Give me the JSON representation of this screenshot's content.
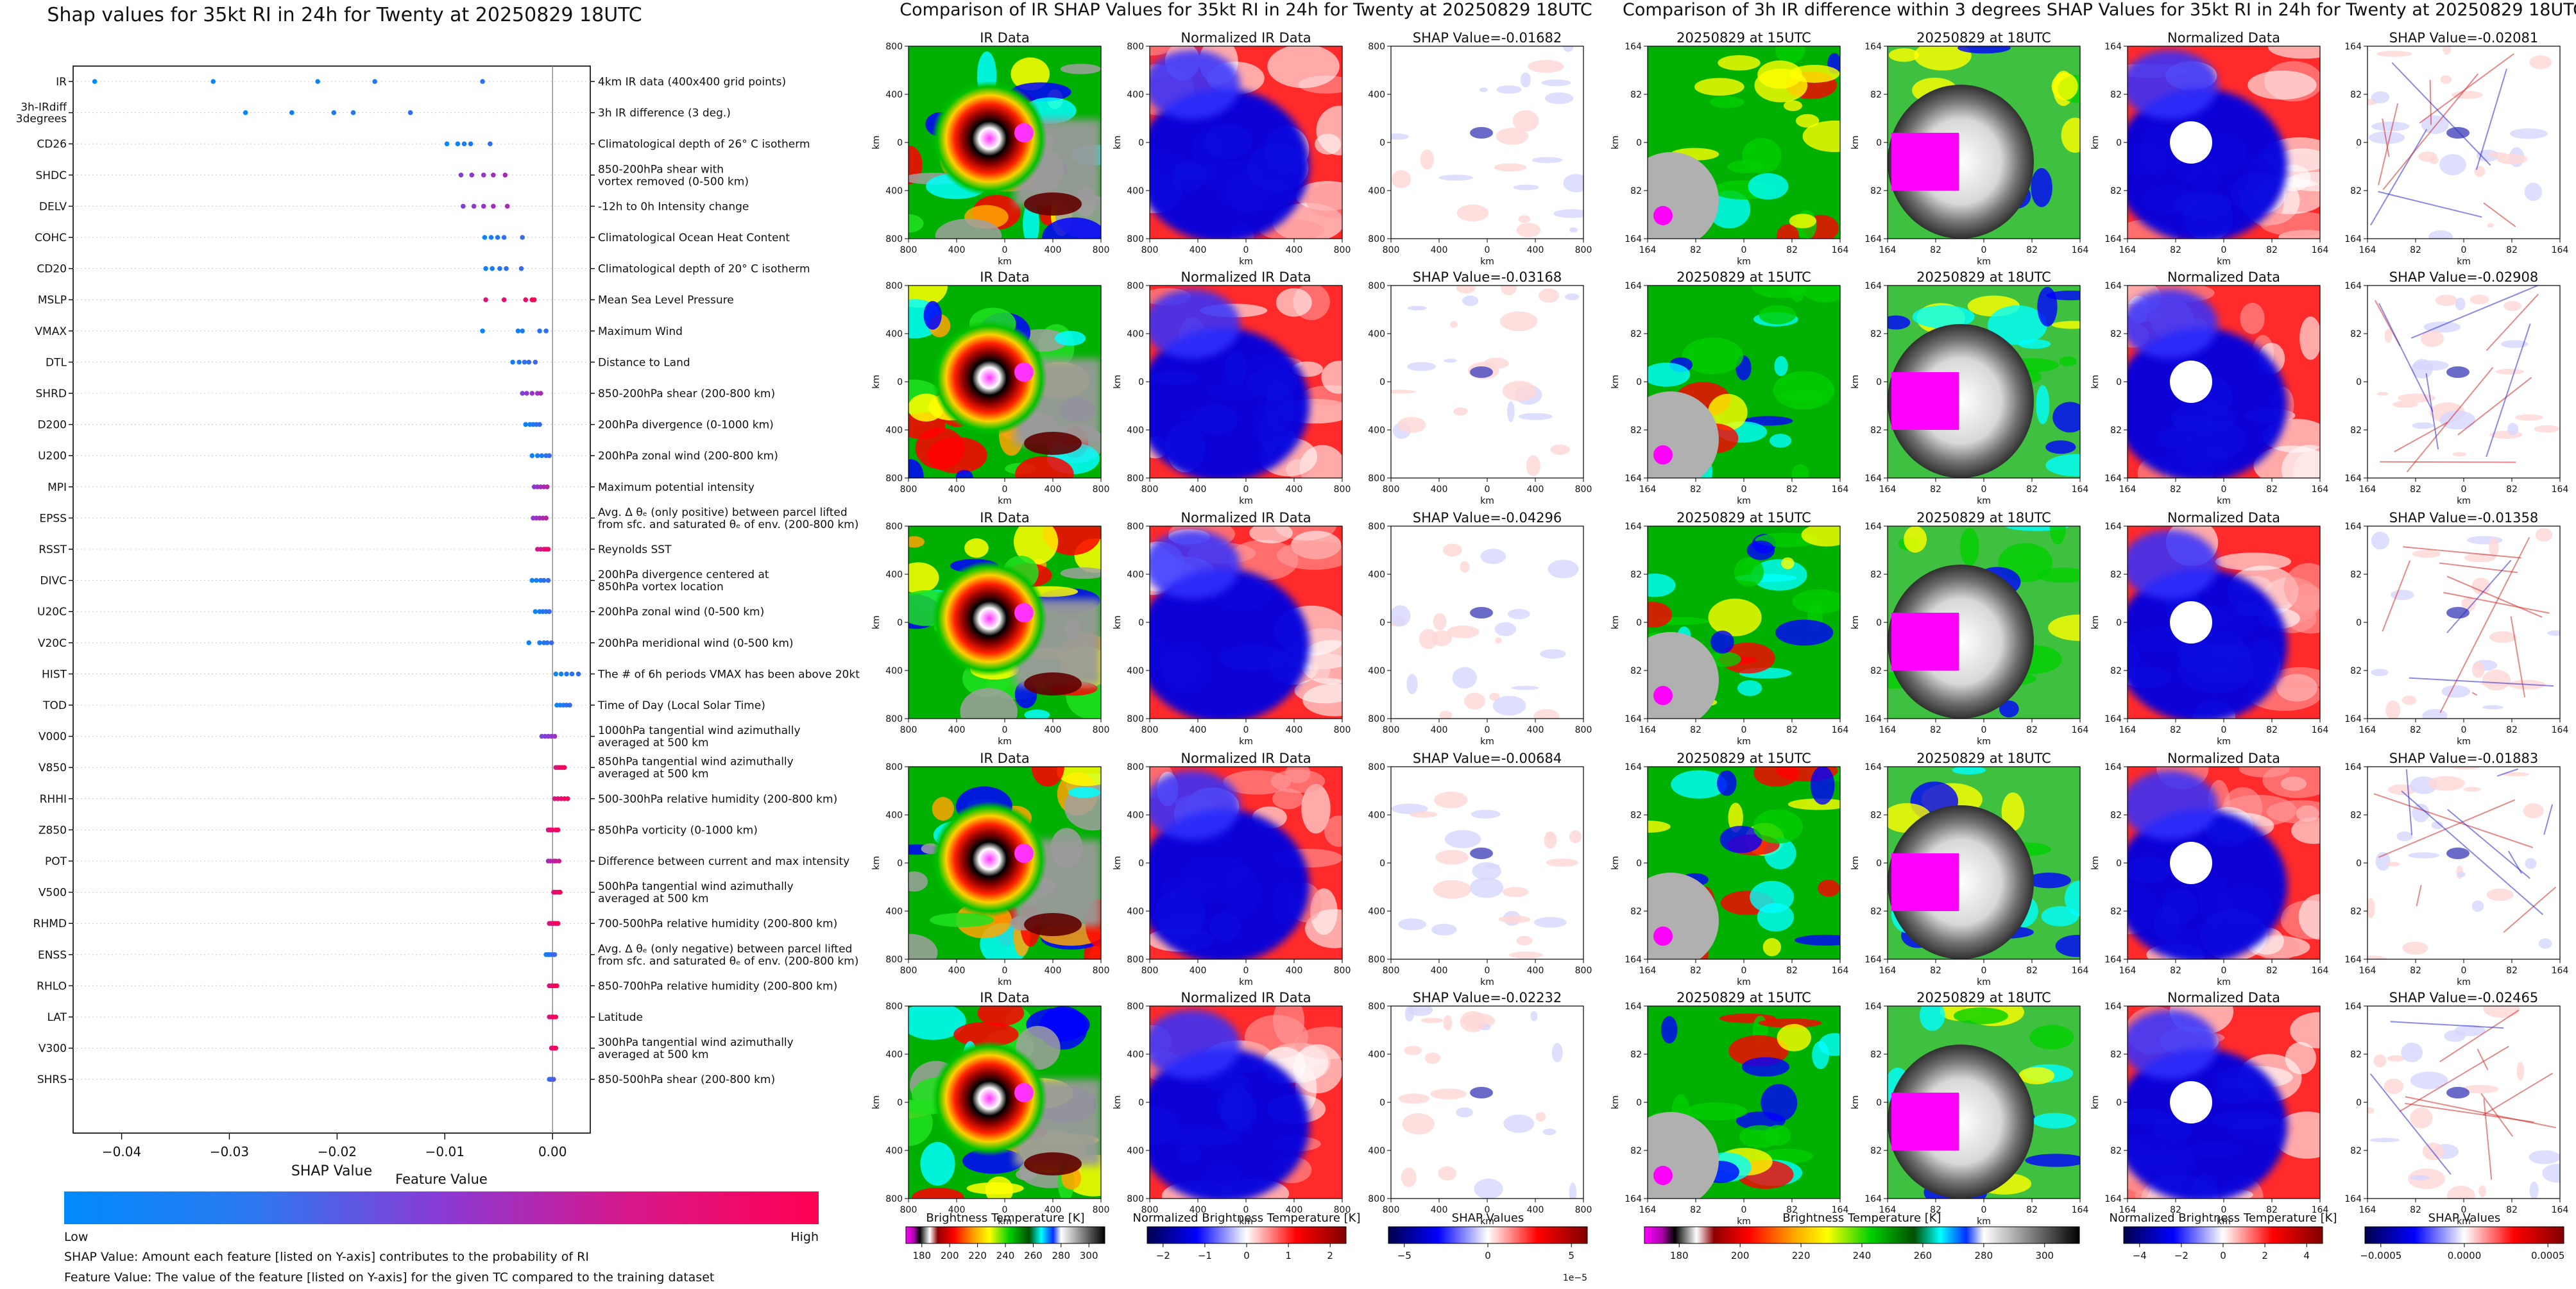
{
  "colors": {
    "feature_low": "#1e88e5",
    "feature_mid": "#8e24aa",
    "feature_high": "#ff0052",
    "seismic_neg": "#0000b4",
    "seismic_pos": "#c00000",
    "axis": "#000000"
  },
  "chart_data": [
    {
      "type": "scatter",
      "name": "shap-beeswarm",
      "title": "Shap values for 35kt RI in 24h for Twenty at 20250829 18UTC",
      "xlabel": "SHAP Value",
      "xlim": [
        -0.0445,
        0.0035
      ],
      "xticks": [
        -0.04,
        -0.03,
        -0.02,
        -0.01,
        0.0
      ],
      "xtick_labels": [
        "−0.04",
        "−0.03",
        "−0.02",
        "−0.01",
        "0.00"
      ],
      "colorbar": {
        "title": "Feature Value",
        "low_label": "Low",
        "high_label": "High"
      },
      "notes": [
        "SHAP Value: Amount each feature [listed on Y-axis] contributes to the probability of RI",
        "Feature Value: The value of the feature [listed on Y-axis] for the given TC compared to the training dataset"
      ],
      "features": [
        {
          "name": "IR",
          "desc": "4km IR data (400x400 grid points)",
          "color": 0.05,
          "values": [
            -0.0425,
            -0.0315,
            -0.0218,
            -0.0165,
            -0.0065
          ]
        },
        {
          "name": "3h-IRdiff\n3degrees",
          "desc": "3h IR difference (3 deg.)",
          "color": 0.1,
          "values": [
            -0.0285,
            -0.0242,
            -0.0203,
            -0.0185,
            -0.0132
          ]
        },
        {
          "name": "CD26",
          "desc": "Climatological depth of 26° C isotherm",
          "color": 0.08,
          "values": [
            -0.0098,
            -0.0088,
            -0.0082,
            -0.0076,
            -0.0058
          ]
        },
        {
          "name": "SHDC",
          "desc": "850-200hPa shear with\nvortex removed (0-500 km)",
          "color": 0.55,
          "values": [
            -0.0085,
            -0.0075,
            -0.0064,
            -0.0055,
            -0.0044
          ]
        },
        {
          "name": "DELV",
          "desc": "-12h to 0h Intensity change",
          "color": 0.55,
          "values": [
            -0.0083,
            -0.0073,
            -0.0064,
            -0.0055,
            -0.0042
          ]
        },
        {
          "name": "COHC",
          "desc": "Climatological Ocean Heat Content",
          "color": 0.12,
          "values": [
            -0.0063,
            -0.0057,
            -0.0051,
            -0.0045,
            -0.0028
          ]
        },
        {
          "name": "CD20",
          "desc": "Climatological depth of 20° C isotherm",
          "color": 0.12,
          "values": [
            -0.0062,
            -0.0056,
            -0.0049,
            -0.0043,
            -0.0029
          ]
        },
        {
          "name": "MSLP",
          "desc": "Mean Sea Level Pressure",
          "color": 0.92,
          "values": [
            -0.0062,
            -0.0045,
            -0.0025,
            -0.0019,
            -0.0017
          ]
        },
        {
          "name": "VMAX",
          "desc": "Maximum Wind",
          "color": 0.1,
          "values": [
            -0.0065,
            -0.0032,
            -0.0028,
            -0.0012,
            -0.0006
          ]
        },
        {
          "name": "DTL",
          "desc": "Distance to Land",
          "color": 0.15,
          "values": [
            -0.0037,
            -0.0031,
            -0.0026,
            -0.0022,
            -0.0016
          ]
        },
        {
          "name": "SHRD",
          "desc": "850-200hPa shear (200-800 km)",
          "color": 0.55,
          "values": [
            -0.0028,
            -0.0024,
            -0.0019,
            -0.0014,
            -0.0011
          ]
        },
        {
          "name": "D200",
          "desc": "200hPa divergence (0-1000 km)",
          "color": 0.12,
          "values": [
            -0.0025,
            -0.0021,
            -0.0018,
            -0.0015,
            -0.0012
          ]
        },
        {
          "name": "U200",
          "desc": "200hPa zonal wind (200-800 km)",
          "color": 0.12,
          "values": [
            -0.0019,
            -0.0014,
            -0.001,
            -0.0006,
            -0.0003
          ]
        },
        {
          "name": "MPI",
          "desc": "Maximum potential intensity",
          "color": 0.6,
          "values": [
            -0.0017,
            -0.0014,
            -0.0011,
            -0.0008,
            -0.0005
          ]
        },
        {
          "name": "EPSS",
          "desc": "Avg. Δ θₑ (only positive) between parcel lifted\nfrom sfc. and saturated θₑ of env. (200-800 km)",
          "color": 0.6,
          "values": [
            -0.0018,
            -0.0015,
            -0.0012,
            -0.0009,
            -0.0006
          ]
        },
        {
          "name": "RSST",
          "desc": "Reynolds SST",
          "color": 0.85,
          "values": [
            -0.0014,
            -0.0011,
            -0.0008,
            -0.0006,
            -0.0004
          ]
        },
        {
          "name": "DIVC",
          "desc": "200hPa divergence centered at\n850hPa vortex location",
          "color": 0.12,
          "values": [
            -0.0019,
            -0.0015,
            -0.0011,
            -0.0008,
            -0.0004
          ]
        },
        {
          "name": "U20C",
          "desc": "200hPa zonal wind (0-500 km)",
          "color": 0.12,
          "values": [
            -0.0016,
            -0.0012,
            -0.0009,
            -0.0006,
            -0.0003
          ]
        },
        {
          "name": "V20C",
          "desc": "200hPa meridional wind (0-500 km)",
          "color": 0.12,
          "values": [
            -0.0022,
            -0.0012,
            -0.0008,
            -0.0005,
            -0.0001
          ]
        },
        {
          "name": "HIST",
          "desc": "The # of 6h periods VMAX has been above 20kt",
          "color": 0.1,
          "values": [
            0.0003,
            0.0008,
            0.0013,
            0.0018,
            0.0024
          ]
        },
        {
          "name": "TOD",
          "desc": "Time of Day (Local Solar Time)",
          "color": 0.12,
          "values": [
            0.0004,
            0.0007,
            0.001,
            0.0013,
            0.0016
          ]
        },
        {
          "name": "V000",
          "desc": "1000hPa tangential wind azimuthally\naveraged at 500 km",
          "color": 0.5,
          "values": [
            -0.001,
            -0.0007,
            -0.0004,
            -0.0001,
            0.0002
          ]
        },
        {
          "name": "V850",
          "desc": "850hPa tangential wind azimuthally\naveraged at 500 km",
          "color": 0.9,
          "values": [
            0.0003,
            0.0005,
            0.0007,
            0.0009,
            0.0011
          ]
        },
        {
          "name": "RHHI",
          "desc": "500-300hPa relative humidity (200-800 km)",
          "color": 0.9,
          "values": [
            0.0002,
            0.0005,
            0.0008,
            0.0011,
            0.0014
          ]
        },
        {
          "name": "Z850",
          "desc": "850hPa vorticity (0-1000 km)",
          "color": 0.9,
          "values": [
            -0.0004,
            -0.0002,
            0.0,
            0.0003,
            0.0005
          ]
        },
        {
          "name": "POT",
          "desc": "Difference between current and max intensity",
          "color": 0.7,
          "values": [
            -0.0004,
            -0.0002,
            0.0001,
            0.0003,
            0.0006
          ]
        },
        {
          "name": "V500",
          "desc": "500hPa tangential wind azimuthally\naveraged at 500 km",
          "color": 0.9,
          "values": [
            0.0001,
            0.0002,
            0.0004,
            0.0006,
            0.0007
          ]
        },
        {
          "name": "RHMD",
          "desc": "700-500hPa relative humidity (200-800 km)",
          "color": 0.9,
          "values": [
            -0.0003,
            -0.0001,
            0.0001,
            0.0003,
            0.0005
          ]
        },
        {
          "name": "ENSS",
          "desc": "Avg. Δ θₑ (only negative) between parcel lifted\nfrom sfc. and saturated θₑ of env. (200-800 km)",
          "color": 0.15,
          "values": [
            -0.0006,
            -0.0004,
            -0.0002,
            0.0,
            0.0002
          ]
        },
        {
          "name": "RHLO",
          "desc": "850-700hPa relative humidity (200-800 km)",
          "color": 0.9,
          "values": [
            -0.0003,
            -0.0001,
            0.0,
            0.0002,
            0.0004
          ]
        },
        {
          "name": "LAT",
          "desc": "Latitude",
          "color": 0.9,
          "values": [
            -0.0003,
            -0.0001,
            0.0,
            0.0001,
            0.0003
          ]
        },
        {
          "name": "V300",
          "desc": "300hPa tangential wind azimuthally\naveraged at 500 km",
          "color": 0.9,
          "values": [
            -0.0001,
            0.0,
            0.0001,
            0.0002,
            0.0003
          ]
        },
        {
          "name": "SHRS",
          "desc": "850-500hPa shear (200-800 km)",
          "color": 0.2,
          "values": [
            -0.0003,
            -0.0002,
            -0.0001,
            0.0,
            0.0001
          ]
        }
      ]
    },
    {
      "type": "heatmap",
      "name": "ir-comparison",
      "title": "Comparison of IR SHAP Values for 35kt RI in 24h for Twenty at 20250829 18UTC",
      "columns": [
        {
          "title": "IR Data",
          "kind": "ir"
        },
        {
          "title": "Normalized IR Data",
          "kind": "norm"
        },
        {
          "title": "SHAP Value",
          "kind": "shap"
        }
      ],
      "shap_values": [
        "-0.01682",
        "-0.03168",
        "-0.04296",
        "-0.00684",
        "-0.02232"
      ],
      "ticks": [
        "800",
        "400",
        "0",
        "400",
        "800"
      ],
      "xlabel": "km",
      "ylabel": "km",
      "colorbars": [
        {
          "label": "Brightness Temperature [K]",
          "ticks": [
            "180",
            "200",
            "220",
            "240",
            "260",
            "280",
            "300"
          ]
        },
        {
          "label": "Normalized Brightness Temperature [K]",
          "ticks": [
            "−2",
            "−1",
            "0",
            "1",
            "2"
          ]
        },
        {
          "label": "SHAP Values",
          "ticks": [
            "−5",
            "0",
            "5"
          ],
          "offset": "1e−5"
        }
      ]
    },
    {
      "type": "heatmap",
      "name": "ir-diff-comparison",
      "title": "Comparison of 3h IR difference within 3 degrees SHAP Values for 35kt RI in 24h for Twenty at 20250829 18UTC",
      "columns": [
        {
          "title": "20250829 at 15UTC",
          "kind": "ir15"
        },
        {
          "title": "20250829 at 18UTC",
          "kind": "ir18"
        },
        {
          "title": "Normalized Data",
          "kind": "norm2"
        },
        {
          "title": "SHAP Value",
          "kind": "shap2"
        }
      ],
      "shap_values": [
        "-0.02081",
        "-0.02908",
        "-0.01358",
        "-0.01883",
        "-0.02465"
      ],
      "ticks": [
        "164",
        "82",
        "0",
        "82",
        "164"
      ],
      "xlabel": "km",
      "ylabel": "km",
      "colorbars": [
        {
          "label": "Brightness Temperature [K]",
          "ticks": [
            "180",
            "200",
            "220",
            "240",
            "260",
            "280",
            "300"
          ]
        },
        {
          "label": "Normalized Brightness Temperature [K]",
          "ticks": [
            "−4",
            "−2",
            "0",
            "2",
            "4"
          ]
        },
        {
          "label": "SHAP Values",
          "ticks": [
            "−0.0005",
            "0.0000",
            "0.0005"
          ]
        }
      ]
    }
  ]
}
